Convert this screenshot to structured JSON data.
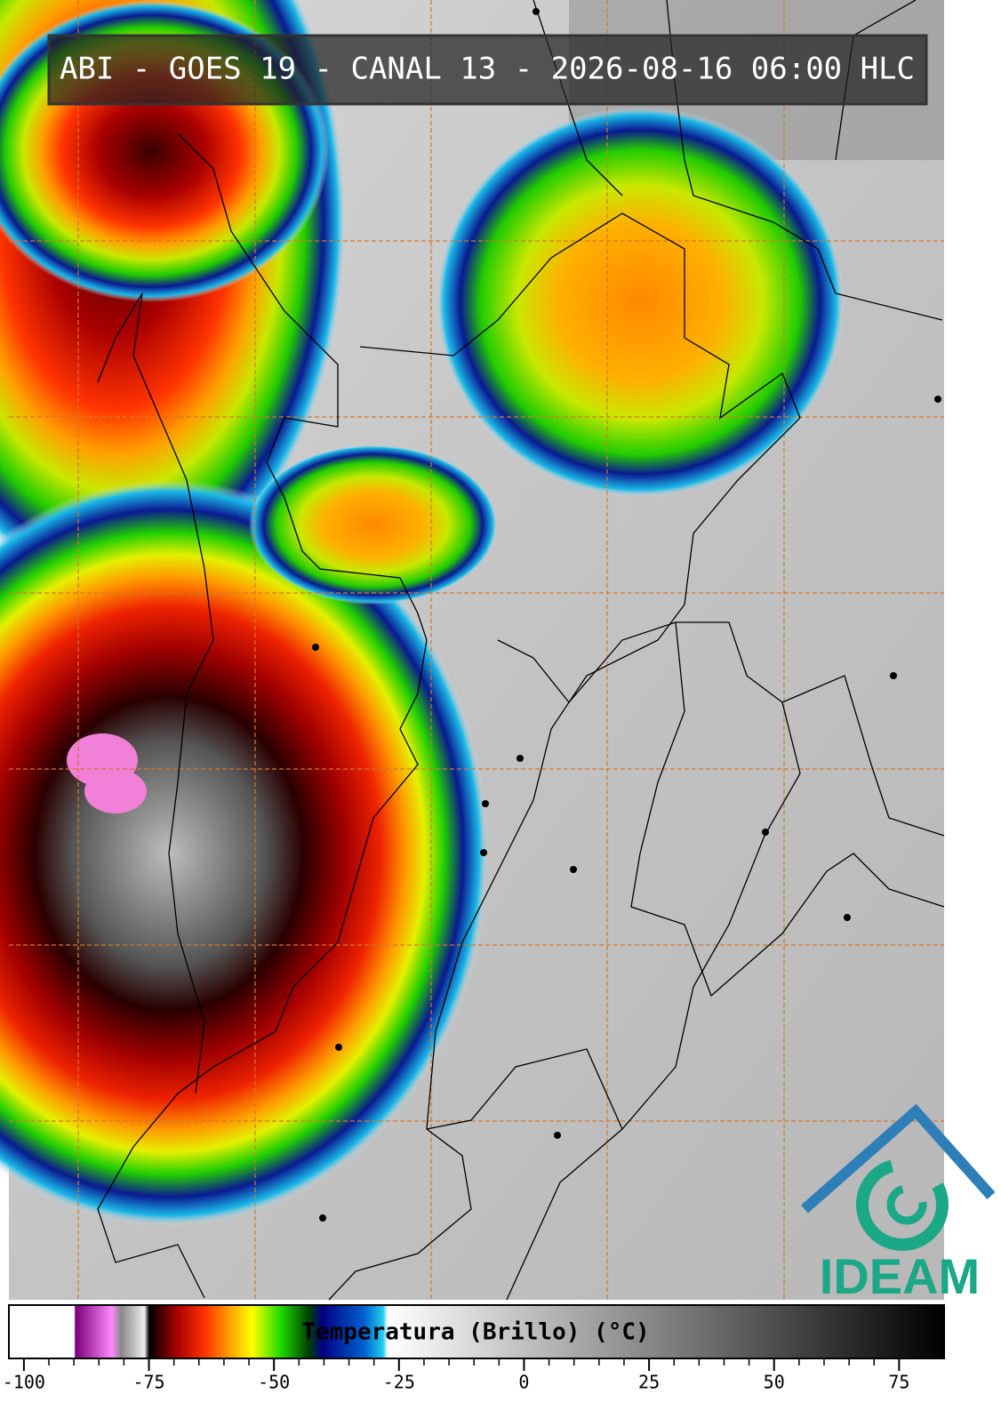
{
  "header": {
    "title": "ABI - GOES 19 - CANAL 13 - 2026-08-16 06:00 HLC"
  },
  "colorbar": {
    "label": "Temperatura (Brillo) (°C)",
    "lim": [
      -103,
      84
    ],
    "ticks": [
      -100,
      -75,
      -50,
      -25,
      0,
      25,
      50,
      75
    ]
  },
  "logo": {
    "text": "IDEAM"
  }
}
